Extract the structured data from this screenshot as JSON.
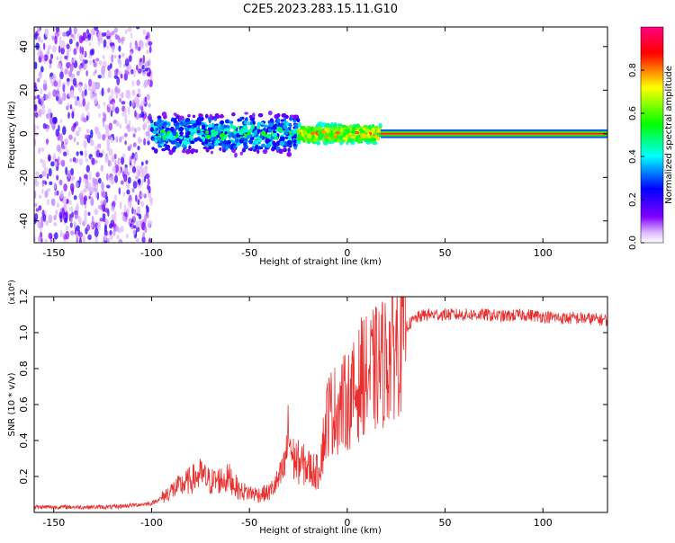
{
  "title": "C2E5.2023.283.15.11.G10",
  "chart_data": [
    {
      "type": "heatmap",
      "xlabel": "Height of straight line (km)",
      "ylabel": "Frequency (Hz)",
      "xlim": [
        -160,
        133
      ],
      "ylim": [
        -50,
        49
      ],
      "xticks": [
        -150,
        -100,
        -50,
        0,
        50,
        100
      ],
      "yticks": [
        -40,
        -20,
        0,
        20,
        40
      ],
      "colorbar": {
        "label": "Normalized spectral amplitude",
        "range": [
          0,
          1
        ],
        "ticks": [
          0.0,
          0.2,
          0.4,
          0.6,
          0.8
        ],
        "tick_labels": [
          "0.0",
          "0.2",
          "0.4",
          "0.6",
          "0.8"
        ],
        "colors": [
          "#ffffff",
          "#8000ff",
          "#0000ff",
          "#00ffff",
          "#00ff00",
          "#ffff00",
          "#ff0000",
          "#ff0080"
        ]
      },
      "regions": [
        {
          "x_range": [
            -160,
            -100
          ],
          "freq_range": [
            -50,
            49
          ],
          "amplitude": "low, scattered noise"
        },
        {
          "x_range": [
            -100,
            -25
          ],
          "freq_range": [
            -12,
            8
          ],
          "center_freq": 0,
          "amplitude": "0.2-0.6"
        },
        {
          "x_range": [
            -25,
            17
          ],
          "freq_range": [
            -6,
            4
          ],
          "center_freq": 0,
          "amplitude": "0.5-0.9"
        },
        {
          "x_range": [
            17,
            133
          ],
          "freq_range": [
            -2,
            2
          ],
          "center_freq": 0,
          "amplitude": "~0.9"
        }
      ]
    },
    {
      "type": "line",
      "xlabel": "Height of straight line (km)",
      "ylabel": "SNR (10 * v/v)",
      "y_multiplier": "(x10⁴)",
      "xlim": [
        -160,
        133
      ],
      "ylim": [
        0,
        1.2
      ],
      "xticks": [
        -150,
        -100,
        -50,
        0,
        50,
        100
      ],
      "yticks": [
        0.2,
        0.4,
        0.6,
        0.8,
        1.0,
        1.2
      ],
      "ytick_labels": [
        "0.2",
        "0.4",
        "0.6",
        "0.8",
        "1.0",
        "1.2"
      ],
      "color": "#e83030",
      "series": [
        {
          "x": [
            -160,
            -150,
            -140,
            -130,
            -120,
            -110,
            -100,
            -95,
            -90,
            -85,
            -80,
            -75,
            -70,
            -65,
            -60,
            -55,
            -50,
            -45,
            -40,
            -35,
            -32,
            -30,
            -28,
            -25,
            -20,
            -15,
            -12,
            -10,
            -5,
            0,
            5,
            8,
            10,
            15,
            20,
            25,
            30,
            35,
            40,
            50,
            60,
            70,
            80,
            90,
            100,
            110,
            120,
            133
          ],
          "y": [
            0.03,
            0.03,
            0.03,
            0.03,
            0.03,
            0.04,
            0.05,
            0.08,
            0.12,
            0.15,
            0.18,
            0.21,
            0.17,
            0.18,
            0.19,
            0.12,
            0.11,
            0.1,
            0.11,
            0.18,
            0.25,
            0.45,
            0.3,
            0.28,
            0.25,
            0.22,
            0.4,
            0.55,
            0.58,
            0.62,
            0.68,
            0.78,
            0.75,
            0.8,
            0.85,
            0.95,
            1.03,
            1.08,
            1.1,
            1.1,
            1.1,
            1.1,
            1.09,
            1.1,
            1.09,
            1.08,
            1.08,
            1.07
          ]
        }
      ]
    }
  ]
}
